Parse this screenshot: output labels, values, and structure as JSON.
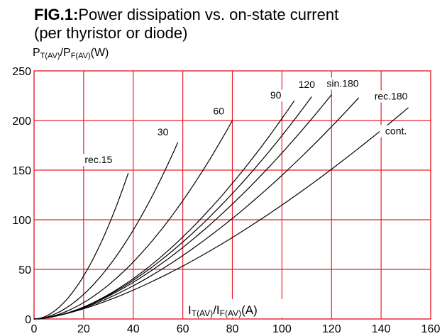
{
  "chart_data": {
    "type": "line",
    "title_prefix": "FIG.1:",
    "title_line1": "Power dissipation vs. on-state current",
    "title_line2": "(per thyristor or diode)",
    "ylabel": {
      "main1": "P",
      "sub1": "T(AV)",
      "sep": "/",
      "main2": "P",
      "sub2": "F(AV)",
      "unit": "(W)"
    },
    "xlabel": {
      "main1": "I",
      "sub1": "T(AV)",
      "sep": "/",
      "main2": "I",
      "sub2": "F(AV)",
      "unit": "(A)"
    },
    "xlim": [
      0,
      160
    ],
    "ylim": [
      0,
      250
    ],
    "xticks": [
      0,
      20,
      40,
      60,
      80,
      100,
      120,
      140,
      160
    ],
    "yticks": [
      0,
      50,
      100,
      150,
      200,
      250
    ],
    "grid": true,
    "grid_color": "#e8202a",
    "series": [
      {
        "name": "rec.15",
        "x_end": 38,
        "y_end": 147
      },
      {
        "name": "30",
        "x_end": 58,
        "y_end": 178
      },
      {
        "name": "60",
        "x_end": 80,
        "y_end": 200
      },
      {
        "name": "90",
        "x_end": 105,
        "y_end": 220
      },
      {
        "name": "120",
        "x_end": 112,
        "y_end": 224
      },
      {
        "name": "sin.180",
        "x_end": 120,
        "y_end": 226
      },
      {
        "name": "rec.180",
        "x_end": 131,
        "y_end": 223
      },
      {
        "name": "cont.",
        "x_end": 151,
        "y_end": 213
      }
    ]
  }
}
